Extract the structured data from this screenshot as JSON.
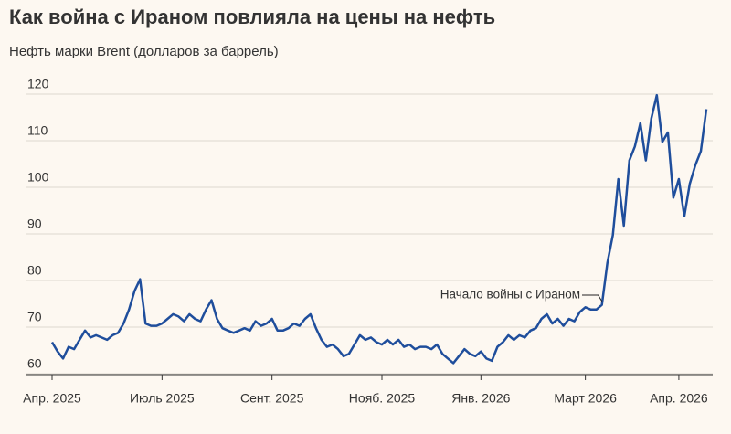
{
  "chart_data": {
    "type": "line",
    "title": "Как война с Ираном повлияла на цены на нефть",
    "subtitle": "Нефть марки Brent (долларов за баррель)",
    "annotation": "Начало войны с Ираном",
    "categories": [
      "Апр. 2025",
      null,
      null,
      null,
      null,
      null,
      null,
      null,
      null,
      null,
      null,
      null,
      null,
      null,
      null,
      null,
      null,
      null,
      null,
      null,
      "Июль 2025",
      null,
      null,
      null,
      null,
      null,
      null,
      null,
      null,
      null,
      null,
      null,
      null,
      null,
      null,
      null,
      null,
      null,
      null,
      null,
      "Сент. 2025",
      null,
      null,
      null,
      null,
      null,
      null,
      null,
      null,
      null,
      null,
      null,
      null,
      null,
      null,
      null,
      null,
      null,
      null,
      null,
      "Нояб. 2025",
      null,
      null,
      null,
      null,
      null,
      null,
      null,
      null,
      null,
      null,
      null,
      null,
      null,
      null,
      null,
      null,
      null,
      "Янв. 2026",
      null,
      null,
      null,
      null,
      null,
      null,
      null,
      null,
      null,
      null,
      null,
      null,
      null,
      null,
      null,
      null,
      null,
      null,
      "Март 2026",
      null,
      null,
      null,
      null,
      null,
      null,
      null,
      null,
      null,
      null,
      null,
      null,
      null,
      null,
      null,
      null,
      "Апр. 2026",
      null,
      null,
      null,
      null,
      null
    ],
    "series": [
      {
        "name": "Brent",
        "color": "#1f4e9c",
        "values": [
          65,
          63,
          61.5,
          64,
          63.5,
          65.5,
          67.5,
          66,
          66.5,
          66,
          65.5,
          66.5,
          67,
          69,
          72,
          76,
          78.5,
          69,
          68.5,
          68.5,
          69,
          70,
          71,
          70.5,
          69.5,
          71,
          70,
          69.5,
          72,
          74,
          70,
          68,
          67.5,
          67,
          67.5,
          68,
          67.5,
          69.5,
          68.5,
          69,
          70,
          67.5,
          67.5,
          68,
          69,
          68.5,
          70,
          71,
          68,
          65.5,
          64,
          64.5,
          63.5,
          62,
          62.5,
          64.5,
          66.5,
          65.5,
          66,
          65,
          64.5,
          65.5,
          64.5,
          65.5,
          64,
          64.5,
          63.5,
          64,
          64,
          63.5,
          64.5,
          62.5,
          61.5,
          60.5,
          62,
          63.5,
          62.5,
          62,
          63,
          61.5,
          61,
          64,
          65,
          66.5,
          65.5,
          66.5,
          66,
          67.5,
          68,
          70,
          71,
          69,
          70,
          68.5,
          70,
          69.5,
          71.5,
          72.5,
          72,
          72,
          73,
          82,
          88,
          100,
          90,
          104,
          107,
          112,
          104,
          113,
          118,
          108,
          110,
          96,
          100,
          92,
          99,
          103,
          106,
          115
        ]
      }
    ],
    "annotation_index": 100,
    "ylim": [
      60,
      120
    ],
    "yticks": [
      60,
      70,
      80,
      90,
      100,
      110,
      120
    ],
    "grid": true
  }
}
